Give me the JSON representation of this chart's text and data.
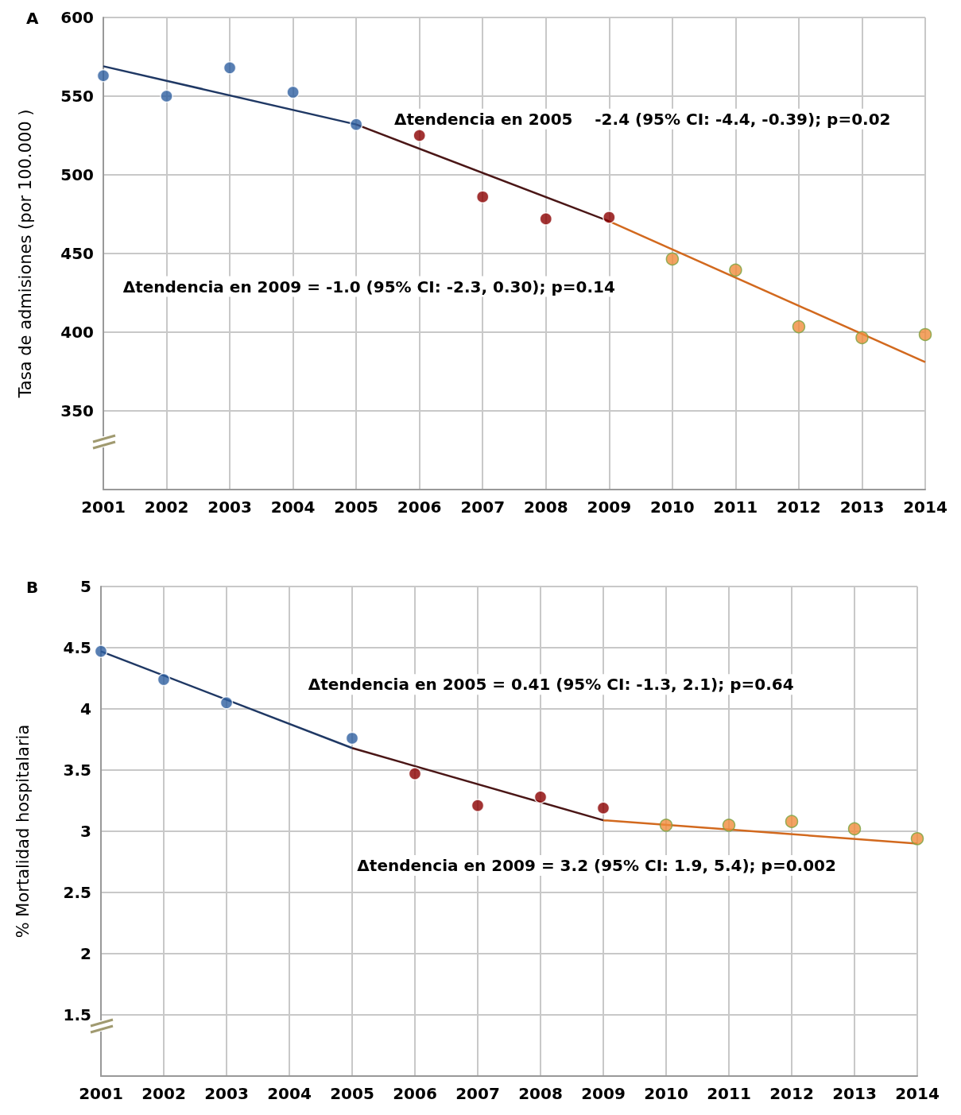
{
  "chart_data": [
    {
      "type": "scatter",
      "title": "A",
      "ylabel": "Tasa de admisiones (por 100.000 )",
      "marker": "circle",
      "grid": true,
      "annotations": [
        "Δtendencia en 2005    -2.4 (95% CI: -4.4, -0.39); p=0.02",
        "Δtendencia en 2009 = -1.0 (95% CI: -2.3, 0.30); p=0.14"
      ],
      "xlim": [
        2001,
        2014
      ],
      "xticks": [
        2001,
        2002,
        2003,
        2004,
        2005,
        2006,
        2007,
        2008,
        2009,
        2010,
        2011,
        2012,
        2013,
        2014
      ],
      "ylim": [
        300,
        600
      ],
      "yticks": [
        350,
        400,
        450,
        500,
        550,
        600
      ],
      "series": [
        {
          "color": "#2e5fa0",
          "x": [
            2001,
            2002,
            2003,
            2004,
            2005
          ],
          "values": [
            563,
            550,
            568,
            552.5,
            532
          ]
        },
        {
          "color": "#8b0000",
          "x": [
            2006,
            2007,
            2008,
            2009
          ],
          "values": [
            525,
            486,
            472,
            473
          ]
        },
        {
          "color": "#f08c3c",
          "x": [
            2010,
            2011,
            2012,
            2013,
            2014
          ],
          "values": [
            446.5,
            439.5,
            403.5,
            396.5,
            398.5
          ]
        },
        {
          "type": "line",
          "marker": "none",
          "color": "#1f3864",
          "x": [
            2001,
            2005
          ],
          "values": [
            569,
            532
          ]
        },
        {
          "type": "line",
          "marker": "none",
          "color": "#4a1616",
          "x": [
            2005,
            2009
          ],
          "values": [
            532,
            470.5
          ]
        },
        {
          "type": "line",
          "marker": "none",
          "color": "#d2691e",
          "x": [
            2009,
            2014
          ],
          "values": [
            470.5,
            381
          ]
        }
      ]
    },
    {
      "type": "scatter",
      "title": "B",
      "ylabel": "% Mortalidad hospitalaria",
      "marker": "circle",
      "grid": true,
      "annotations": [
        "Δtendencia en 2005 = 0.41 (95% CI: -1.3, 2.1); p=0.64",
        "Δtendencia en 2009 = 3.2 (95% CI: 1.9, 5.4); p=0.002"
      ],
      "xlim": [
        2001,
        2014
      ],
      "xticks": [
        2001,
        2002,
        2003,
        2004,
        2005,
        2006,
        2007,
        2008,
        2009,
        2010,
        2011,
        2012,
        2013,
        2014
      ],
      "ylim": [
        1,
        5
      ],
      "yticks": [
        1.5,
        2,
        2.5,
        3,
        3.5,
        4,
        4.5,
        5
      ],
      "series": [
        {
          "color": "#2e5fa0",
          "x": [
            2001,
            2002,
            2003,
            2004,
            2005
          ],
          "values": [
            4.47,
            4.24,
            4.05,
            null,
            3.76
          ]
        },
        {
          "color": "#8b0000",
          "x": [
            2006,
            2007,
            2008,
            2009
          ],
          "values": [
            3.47,
            3.21,
            3.28,
            3.19
          ]
        },
        {
          "color": "#f08c3c",
          "x": [
            2010,
            2011,
            2012,
            2013,
            2014
          ],
          "values": [
            3.05,
            3.05,
            3.08,
            3.02,
            2.94
          ]
        },
        {
          "type": "line",
          "marker": "none",
          "color": "#1f3864",
          "x": [
            2001,
            2005
          ],
          "values": [
            4.47,
            3.68
          ]
        },
        {
          "type": "line",
          "marker": "none",
          "color": "#4a1616",
          "x": [
            2005,
            2009
          ],
          "values": [
            3.68,
            3.09
          ]
        },
        {
          "type": "line",
          "marker": "none",
          "color": "#d2691e",
          "x": [
            2009,
            2014
          ],
          "values": [
            3.09,
            2.9
          ]
        }
      ]
    }
  ]
}
